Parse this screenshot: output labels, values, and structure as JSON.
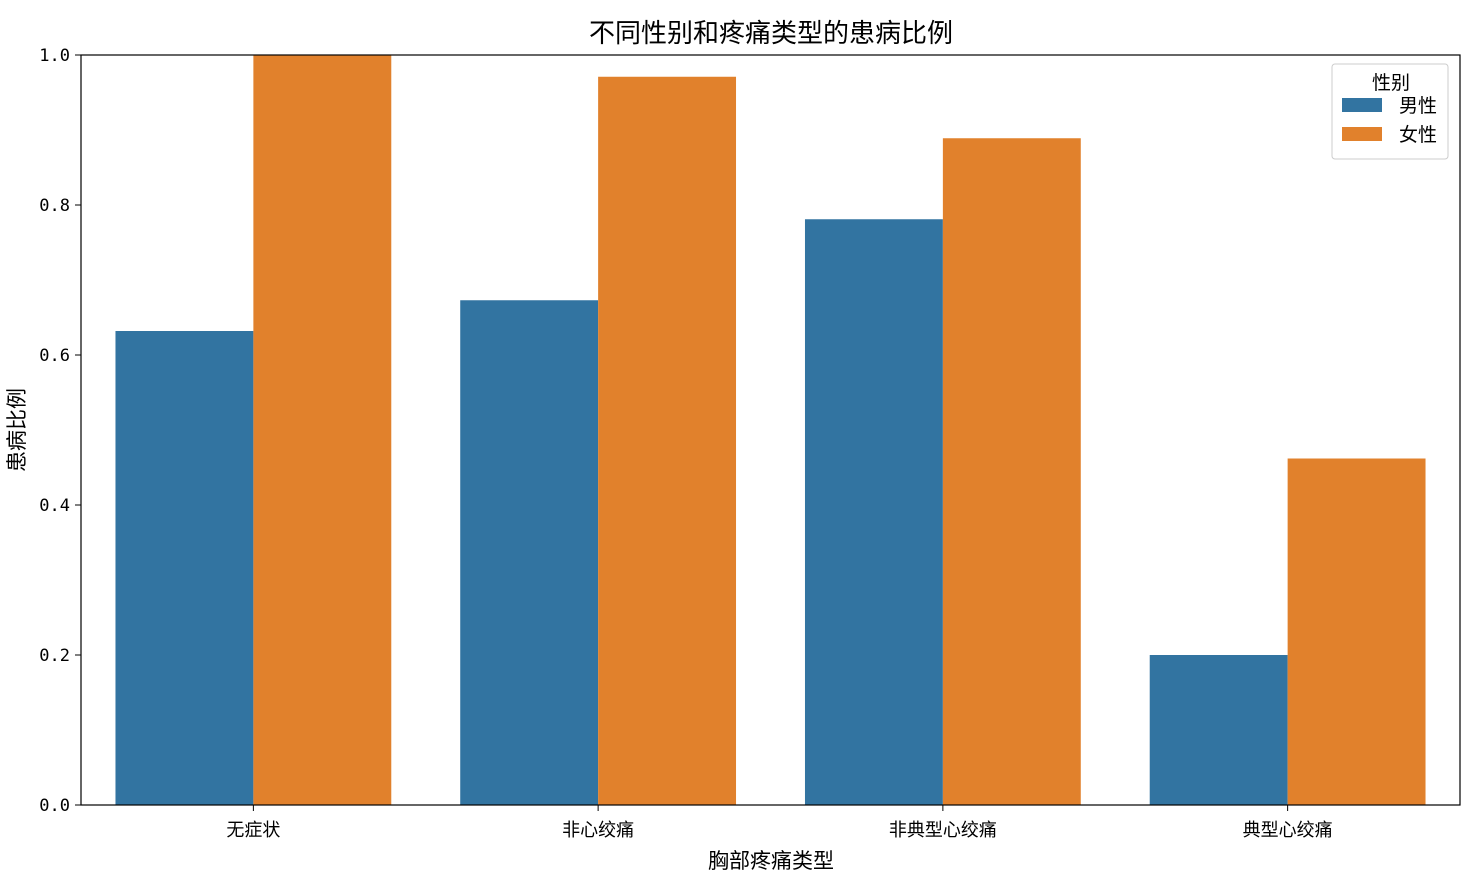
{
  "chart_data": {
    "type": "bar",
    "title": "不同性别和疼痛类型的患病比例",
    "xlabel": "胸部疼痛类型",
    "ylabel": "患病比例",
    "categories": [
      "无症状",
      "非心绞痛",
      "非典型心绞痛",
      "典型心绞痛"
    ],
    "series": [
      {
        "name": "男性",
        "color": "#3274a1",
        "values": [
          0.632,
          0.673,
          0.781,
          0.2
        ]
      },
      {
        "name": "女性",
        "color": "#e1812c",
        "values": [
          1.0,
          0.971,
          0.889,
          0.462
        ]
      }
    ],
    "ylim": [
      0,
      1.0
    ],
    "yticks": [
      0.0,
      0.2,
      0.4,
      0.6,
      0.8,
      1.0
    ],
    "ytick_labels": [
      "0.0",
      "0.2",
      "0.4",
      "0.6",
      "0.8",
      "1.0"
    ],
    "grid": false,
    "legend": {
      "title": "性别",
      "position": "top-right"
    }
  }
}
